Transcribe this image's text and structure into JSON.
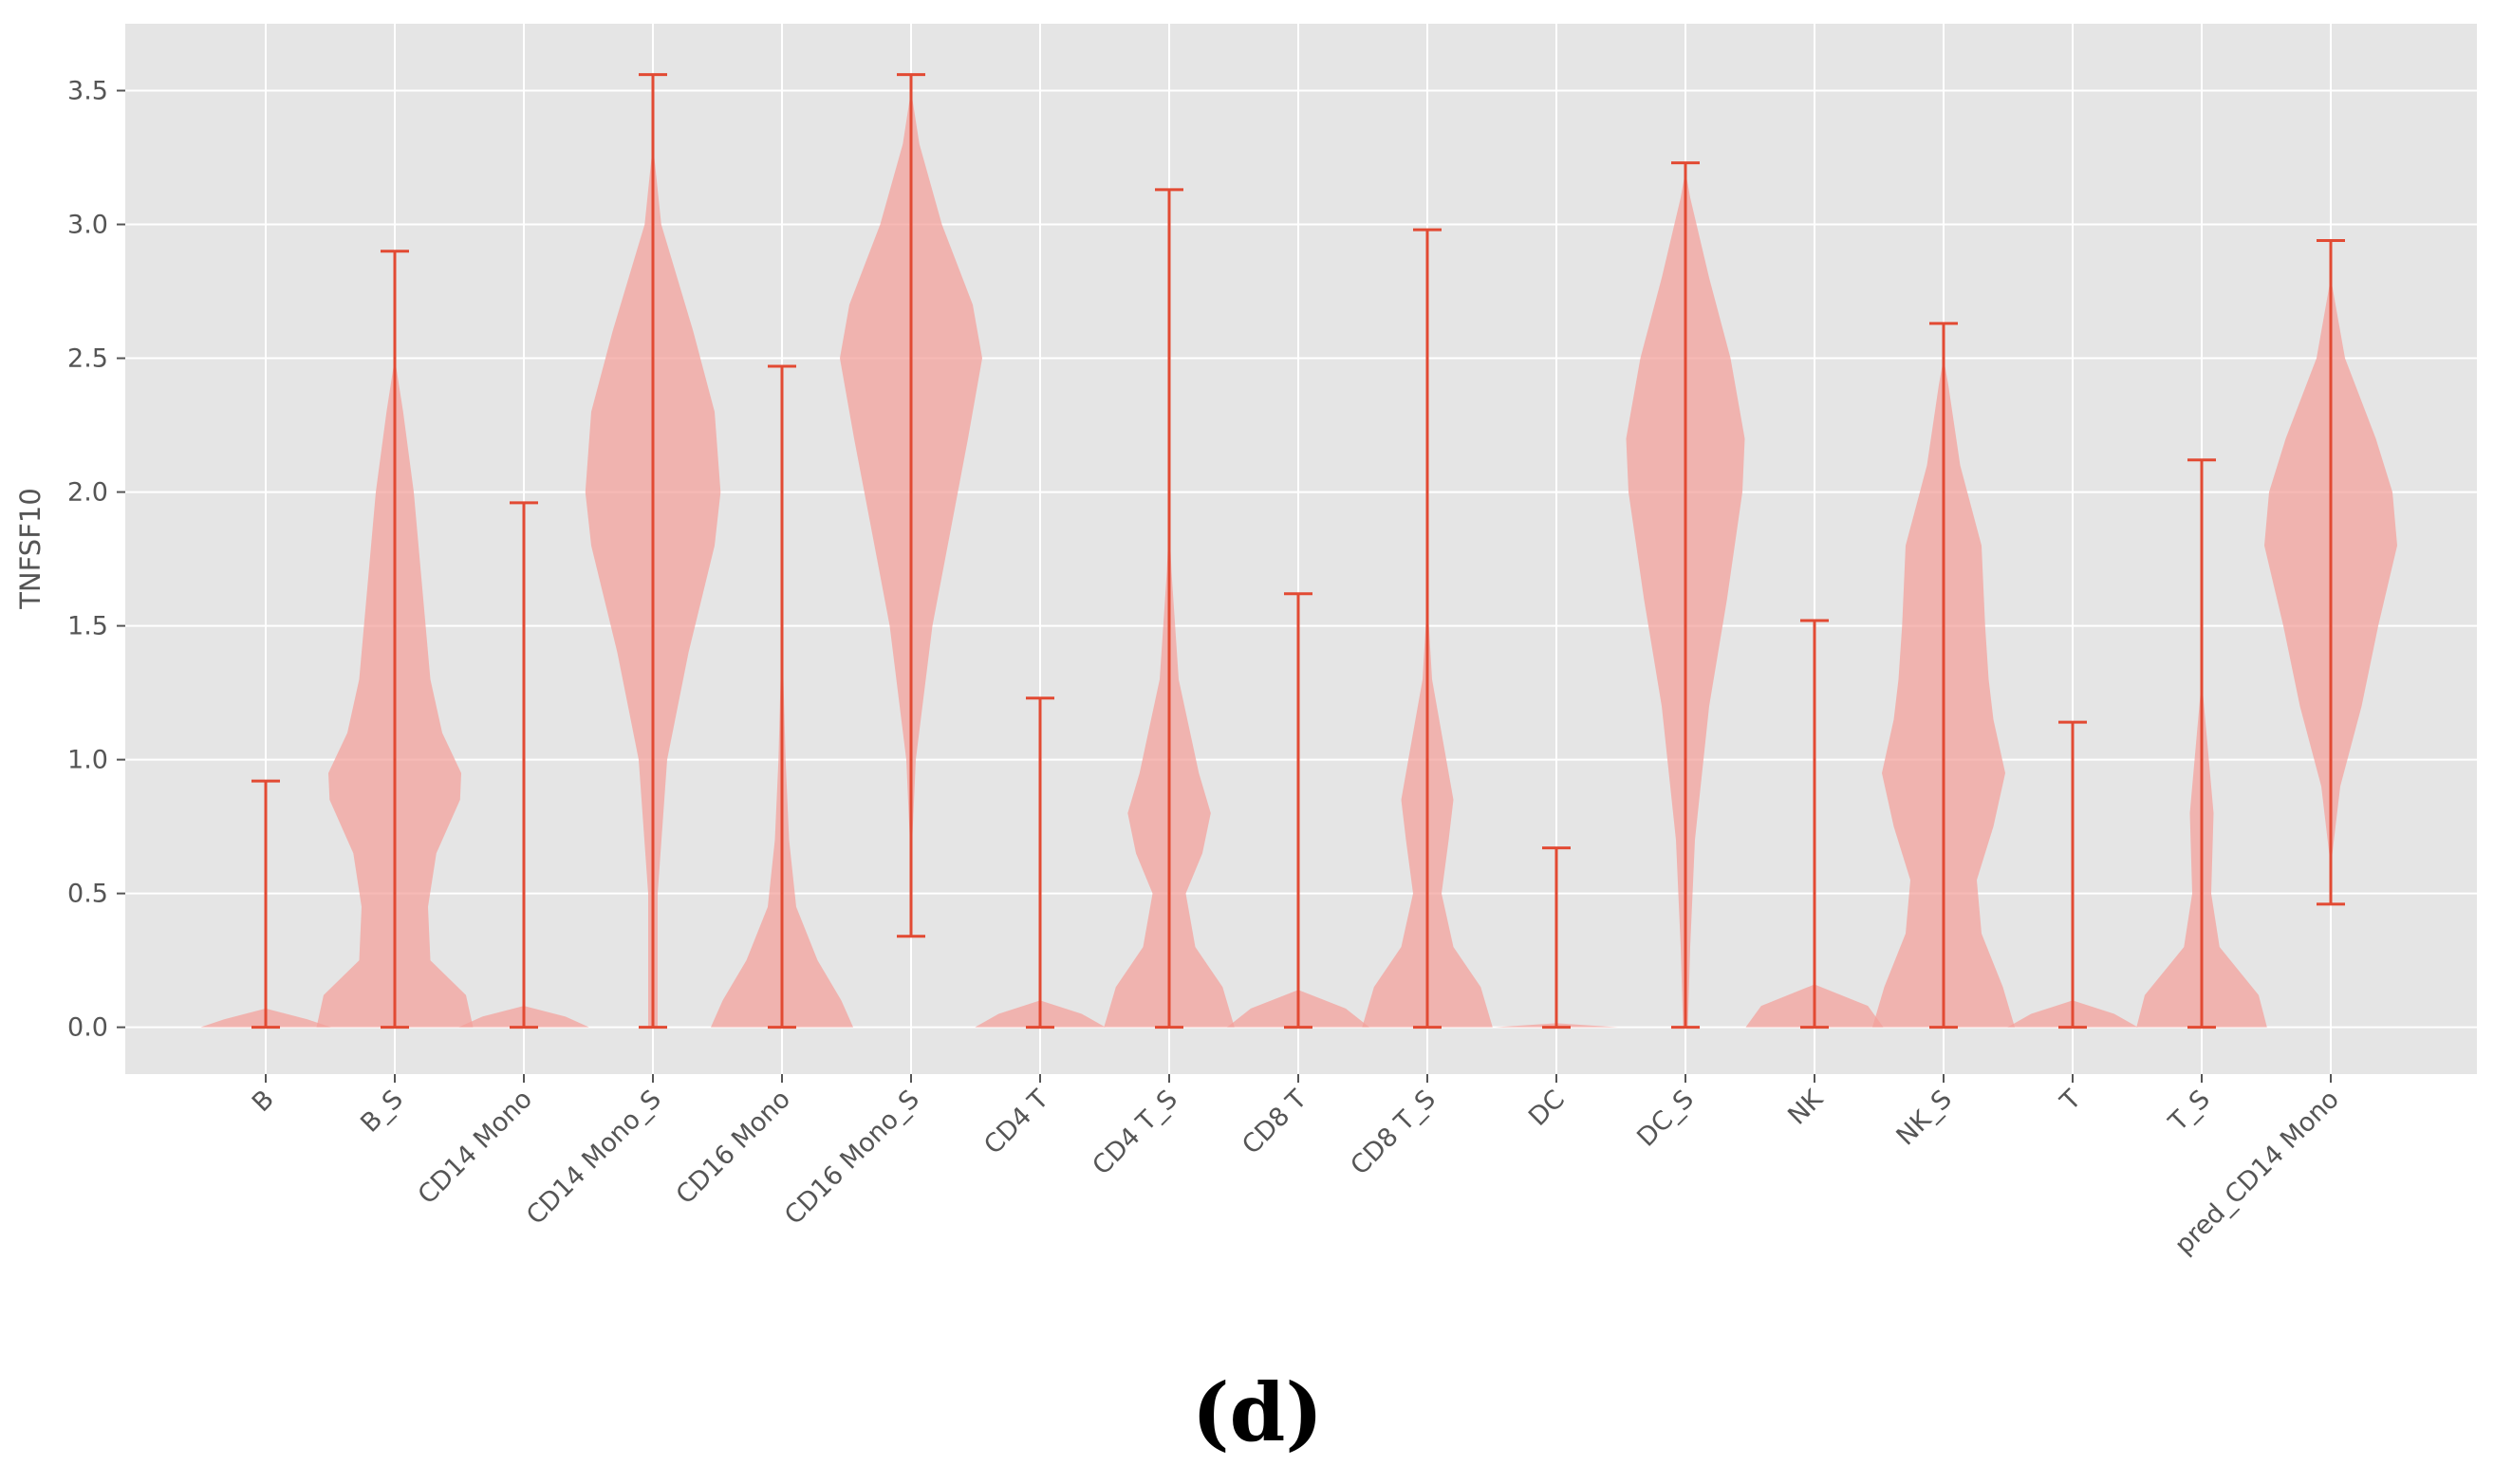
{
  "chart_data": {
    "type": "violin",
    "title": "",
    "xlabel": "",
    "ylabel": "TNFSF10",
    "caption": "(d)",
    "ylim": [
      -0.175,
      3.75
    ],
    "yticks": [
      0.0,
      0.5,
      1.0,
      1.5,
      2.0,
      2.5,
      3.0,
      3.5
    ],
    "ytick_labels": [
      "0.0",
      "0.5",
      "1.0",
      "1.5",
      "2.0",
      "2.5",
      "3.0",
      "3.5"
    ],
    "grid": true,
    "colors": {
      "background": "#e5e5e5",
      "grid": "#ffffff",
      "violin_fill": "#f4a09a",
      "violin_line": "#e24a33",
      "tick_text": "#555555"
    },
    "categories": [
      "B",
      "B_S",
      "CD14 Mono",
      "CD14 Mono_S",
      "CD16 Mono",
      "CD16 Mono_S",
      "CD4 T",
      "CD4 T_S",
      "CD8 T",
      "CD8 T_S",
      "DC",
      "DC_S",
      "NK",
      "NK_S",
      "T",
      "T_S",
      "pred_CD14 Mono"
    ],
    "min": [
      0,
      0,
      0,
      0,
      0,
      0.34,
      0,
      0,
      0,
      0,
      0,
      0,
      0,
      0,
      0,
      0,
      0.46
    ],
    "max": [
      0.92,
      2.9,
      1.96,
      3.56,
      2.47,
      3.56,
      1.23,
      3.13,
      1.62,
      2.98,
      0.67,
      3.23,
      1.52,
      2.63,
      1.14,
      2.12,
      2.94
    ],
    "density": [
      [
        [
          0,
          0.055
        ],
        [
          0.03,
          0.035
        ],
        [
          0.07,
          0
        ]
      ],
      [
        [
          0,
          0.066
        ],
        [
          0.12,
          0.06
        ],
        [
          0.25,
          0.03
        ],
        [
          0.45,
          0.028
        ],
        [
          0.65,
          0.035
        ],
        [
          0.85,
          0.055
        ],
        [
          0.95,
          0.056
        ],
        [
          1.1,
          0.04
        ],
        [
          1.3,
          0.03
        ],
        [
          1.7,
          0.022
        ],
        [
          2.0,
          0.016
        ],
        [
          2.3,
          0.007
        ],
        [
          2.5,
          0
        ]
      ],
      [
        [
          0,
          0.055
        ],
        [
          0.04,
          0.035
        ],
        [
          0.08,
          0
        ]
      ],
      [
        [
          0,
          0.004
        ],
        [
          0.5,
          0.004
        ],
        [
          1.0,
          0.012
        ],
        [
          1.4,
          0.03
        ],
        [
          1.8,
          0.052
        ],
        [
          2.0,
          0.057
        ],
        [
          2.3,
          0.052
        ],
        [
          2.6,
          0.034
        ],
        [
          3.0,
          0.007
        ],
        [
          3.3,
          0
        ]
      ],
      [
        [
          0,
          0.06
        ],
        [
          0.1,
          0.05
        ],
        [
          0.25,
          0.03
        ],
        [
          0.45,
          0.012
        ],
        [
          0.7,
          0.006
        ],
        [
          1.0,
          0.003
        ],
        [
          1.5,
          0
        ]
      ],
      [
        [
          0.6,
          0
        ],
        [
          1.0,
          0.004
        ],
        [
          1.5,
          0.018
        ],
        [
          1.85,
          0.033
        ],
        [
          2.2,
          0.048
        ],
        [
          2.5,
          0.06
        ],
        [
          2.7,
          0.052
        ],
        [
          3.0,
          0.026
        ],
        [
          3.3,
          0.007
        ],
        [
          3.5,
          0
        ]
      ],
      [
        [
          0,
          0.055
        ],
        [
          0.05,
          0.035
        ],
        [
          0.1,
          0
        ]
      ],
      [
        [
          0,
          0.055
        ],
        [
          0.15,
          0.045
        ],
        [
          0.3,
          0.022
        ],
        [
          0.5,
          0.014
        ],
        [
          0.65,
          0.028
        ],
        [
          0.8,
          0.035
        ],
        [
          0.95,
          0.025
        ],
        [
          1.3,
          0.008
        ],
        [
          1.7,
          0.002
        ],
        [
          1.9,
          0
        ]
      ],
      [
        [
          0,
          0.06
        ],
        [
          0.07,
          0.04
        ],
        [
          0.14,
          0
        ]
      ],
      [
        [
          0,
          0.055
        ],
        [
          0.15,
          0.045
        ],
        [
          0.3,
          0.022
        ],
        [
          0.5,
          0.012
        ],
        [
          0.7,
          0.018
        ],
        [
          0.85,
          0.022
        ],
        [
          1.0,
          0.016
        ],
        [
          1.3,
          0.004
        ],
        [
          1.6,
          0
        ]
      ],
      [
        [
          0,
          0.052
        ],
        [
          0.015,
          0
        ]
      ],
      [
        [
          0,
          0.002
        ],
        [
          0.3,
          0.004
        ],
        [
          0.7,
          0.008
        ],
        [
          1.2,
          0.02
        ],
        [
          1.6,
          0.035
        ],
        [
          2.0,
          0.048
        ],
        [
          2.2,
          0.05
        ],
        [
          2.5,
          0.038
        ],
        [
          2.8,
          0.02
        ],
        [
          3.1,
          0.004
        ],
        [
          3.2,
          0
        ]
      ],
      [
        [
          0,
          0.058
        ],
        [
          0.08,
          0.045
        ],
        [
          0.16,
          0
        ]
      ],
      [
        [
          0,
          0.06
        ],
        [
          0.15,
          0.05
        ],
        [
          0.35,
          0.032
        ],
        [
          0.55,
          0.028
        ],
        [
          0.75,
          0.042
        ],
        [
          0.95,
          0.052
        ],
        [
          1.15,
          0.042
        ],
        [
          1.3,
          0.038
        ],
        [
          1.5,
          0.035
        ],
        [
          1.8,
          0.032
        ],
        [
          2.1,
          0.014
        ],
        [
          2.4,
          0.004
        ],
        [
          2.5,
          0
        ]
      ],
      [
        [
          0,
          0.055
        ],
        [
          0.05,
          0.035
        ],
        [
          0.1,
          0
        ]
      ],
      [
        [
          0,
          0.055
        ],
        [
          0.12,
          0.048
        ],
        [
          0.3,
          0.015
        ],
        [
          0.5,
          0.008
        ],
        [
          0.8,
          0.01
        ],
        [
          1.0,
          0.006
        ],
        [
          1.3,
          0
        ]
      ],
      [
        [
          0.6,
          0
        ],
        [
          0.9,
          0.008
        ],
        [
          1.2,
          0.026
        ],
        [
          1.5,
          0.04
        ],
        [
          1.8,
          0.056
        ],
        [
          2.0,
          0.052
        ],
        [
          2.2,
          0.038
        ],
        [
          2.5,
          0.012
        ],
        [
          2.8,
          0
        ]
      ]
    ]
  }
}
